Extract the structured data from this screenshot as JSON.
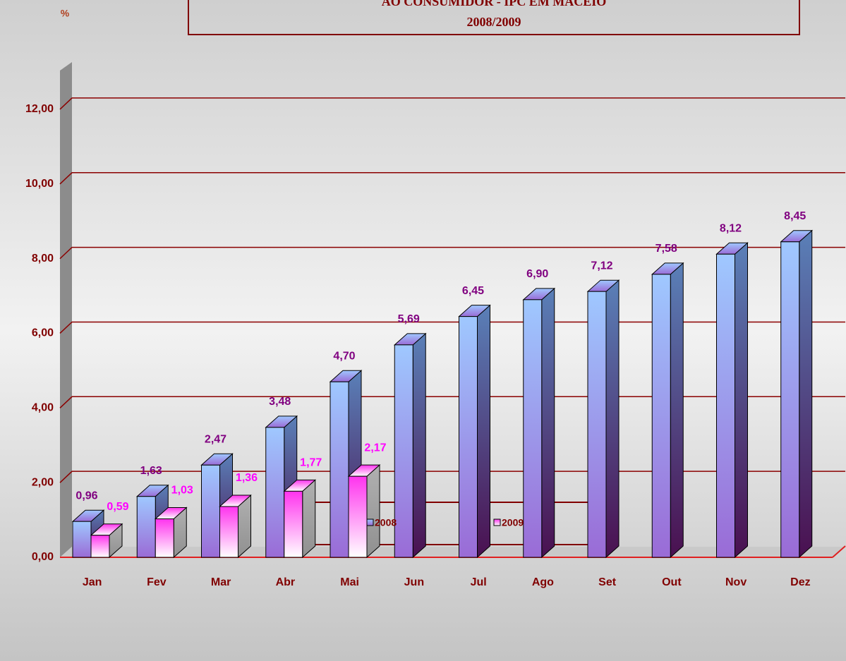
{
  "chart_data": {
    "type": "bar3d",
    "title": "AO CONSUMIDOR - IPC EM MACEIÓ",
    "subtitle": "2008/2009",
    "y_label": "%",
    "categories": [
      "Jan",
      "Fev",
      "Mar",
      "Abr",
      "Mai",
      "Jun",
      "Jul",
      "Ago",
      "Set",
      "Out",
      "Nov",
      "Dez"
    ],
    "series": [
      {
        "name": "2008",
        "color": "#6a8fd8",
        "label_color": "#800080",
        "values": [
          0.96,
          1.63,
          2.47,
          3.48,
          4.7,
          5.69,
          6.45,
          6.9,
          7.12,
          7.58,
          8.12,
          8.45
        ],
        "value_labels": [
          "0,96",
          "1,63",
          "2,47",
          "3,48",
          "4,70",
          "5,69",
          "6,45",
          "6,90",
          "7,12",
          "7,58",
          "8,12",
          "8,45"
        ]
      },
      {
        "name": "2009",
        "color": "#ff66ff",
        "label_color": "#ff00ff",
        "values": [
          0.59,
          1.03,
          1.36,
          1.77,
          2.17,
          null,
          null,
          null,
          null,
          null,
          null,
          null
        ],
        "value_labels": [
          "0,59",
          "1,03",
          "1,36",
          "1,77",
          "2,17",
          null,
          null,
          null,
          null,
          null,
          null,
          null
        ]
      }
    ],
    "ylim": [
      0,
      13
    ],
    "yticks": [
      {
        "value": 0,
        "label": "0,00"
      },
      {
        "value": 2,
        "label": "2,00"
      },
      {
        "value": 4,
        "label": "4,00"
      },
      {
        "value": 6,
        "label": "6,00"
      },
      {
        "value": 8,
        "label": "8,00"
      },
      {
        "value": 10,
        "label": "10,00"
      },
      {
        "value": 12,
        "label": "12,00"
      }
    ],
    "grid": true,
    "legend": "bottom"
  }
}
